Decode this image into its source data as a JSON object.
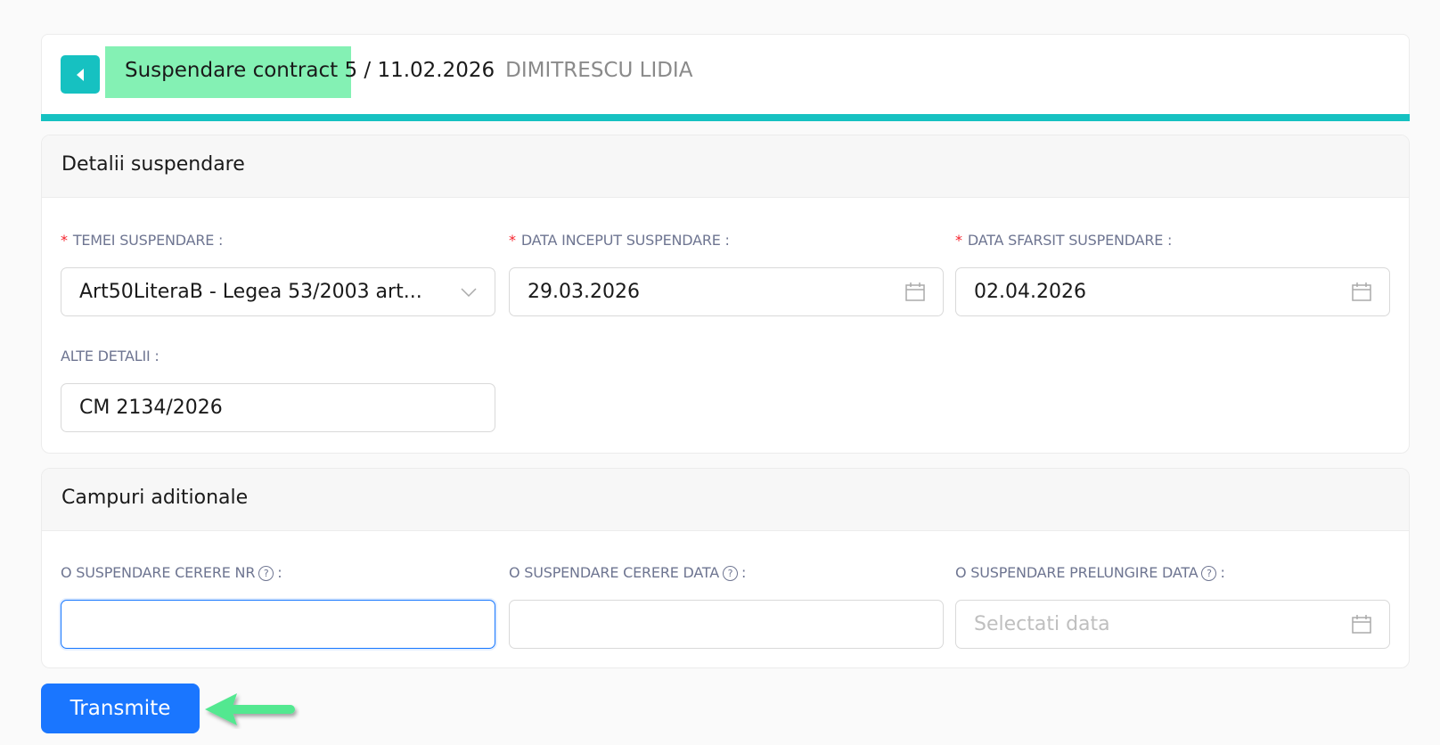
{
  "header": {
    "title_highlight": "Suspendare contract",
    "title_number": "5 / 11.02.2026",
    "employee": "DIMITRESCU LIDIA",
    "accent": "#16c1c1",
    "highlight": "#84f1b4"
  },
  "details": {
    "title": "Detalii suspendare",
    "temei_label": "TEMEI SUSPENDARE :",
    "temei_value": "Art50LiteraB - Legea 53/2003 art...",
    "start_label": "DATA INCEPUT SUSPENDARE :",
    "start_value": "29.03.2026",
    "end_label": "DATA SFARSIT SUSPENDARE :",
    "end_value": "02.04.2026",
    "other_label": "ALTE DETALII :",
    "other_value": "CM 2134/2026",
    "required_mark": "*"
  },
  "additional": {
    "title": "Campuri aditionale",
    "nr_label": "O SUSPENDARE CERERE NR",
    "nr_value": "",
    "data_label": "O SUSPENDARE CERERE DATA",
    "data_value": "",
    "prel_label": "O SUSPENDARE PRELUNGIRE DATA",
    "prel_placeholder": "Selectati data",
    "help_glyph": "?",
    "colon": ":"
  },
  "actions": {
    "submit_label": "Transmite",
    "button_color": "#1a76ff"
  }
}
